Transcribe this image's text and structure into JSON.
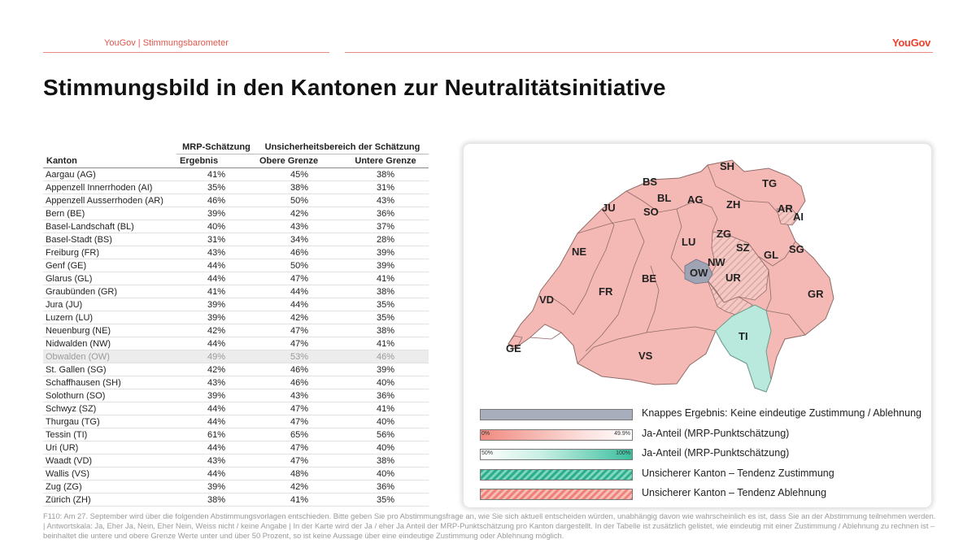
{
  "header": {
    "breadcrumb": "YouGov | Stimmungsbarometer",
    "brand": "YouGov"
  },
  "title": "Stimmungsbild in den Kantonen zur Neutralitätsinitiative",
  "table": {
    "group_headers": [
      "MRP-Schätzung",
      "Unsicherheitsbereich der Schätzung"
    ],
    "columns": [
      "Kanton",
      "Ergebnis",
      "Obere Grenze",
      "Untere Grenze"
    ],
    "rows": [
      [
        "Aargau (AG)",
        "41%",
        "45%",
        "38%"
      ],
      [
        "Appenzell Innerrhoden (AI)",
        "35%",
        "38%",
        "31%"
      ],
      [
        "Appenzell Ausserrhoden (AR)",
        "46%",
        "50%",
        "43%"
      ],
      [
        "Bern (BE)",
        "39%",
        "42%",
        "36%"
      ],
      [
        "Basel-Landschaft (BL)",
        "40%",
        "43%",
        "37%"
      ],
      [
        "Basel-Stadt (BS)",
        "31%",
        "34%",
        "28%"
      ],
      [
        "Freiburg (FR)",
        "43%",
        "46%",
        "39%"
      ],
      [
        "Genf (GE)",
        "44%",
        "50%",
        "39%"
      ],
      [
        "Glarus (GL)",
        "44%",
        "47%",
        "41%"
      ],
      [
        "Graubünden (GR)",
        "41%",
        "44%",
        "38%"
      ],
      [
        "Jura (JU)",
        "39%",
        "44%",
        "35%"
      ],
      [
        "Luzern (LU)",
        "39%",
        "42%",
        "35%"
      ],
      [
        "Neuenburg (NE)",
        "42%",
        "47%",
        "38%"
      ],
      [
        "Nidwalden (NW)",
        "44%",
        "47%",
        "41%"
      ],
      [
        "Obwalden (OW)",
        "49%",
        "53%",
        "46%"
      ],
      [
        "St. Gallen (SG)",
        "42%",
        "46%",
        "39%"
      ],
      [
        "Schaffhausen (SH)",
        "43%",
        "46%",
        "40%"
      ],
      [
        "Solothurn (SO)",
        "39%",
        "43%",
        "36%"
      ],
      [
        "Schwyz (SZ)",
        "44%",
        "47%",
        "41%"
      ],
      [
        "Thurgau (TG)",
        "44%",
        "47%",
        "40%"
      ],
      [
        "Tessin (TI)",
        "61%",
        "65%",
        "56%"
      ],
      [
        "Uri (UR)",
        "44%",
        "47%",
        "40%"
      ],
      [
        "Waadt (VD)",
        "43%",
        "47%",
        "38%"
      ],
      [
        "Wallis (VS)",
        "44%",
        "48%",
        "40%"
      ],
      [
        "Zug (ZG)",
        "39%",
        "42%",
        "36%"
      ],
      [
        "Zürich (ZH)",
        "38%",
        "41%",
        "35%"
      ]
    ]
  },
  "map": {
    "labels": [
      "SH",
      "TG",
      "BS",
      "BL",
      "AG",
      "ZH",
      "JU",
      "SO",
      "AR",
      "AI",
      "LU",
      "ZG",
      "NE",
      "SZ",
      "GL",
      "SG",
      "NW",
      "OW",
      "UR",
      "BE",
      "FR",
      "GR",
      "VD",
      "TI",
      "GE",
      "VS"
    ]
  },
  "legend": {
    "items": [
      "Knappes Ergebnis: Keine eindeutige Zustimmung / Ablehnung",
      "Ja-Anteil (MRP-Punktschätzung)",
      "Ja-Anteil (MRP-Punktschätzung)",
      "Unsicherer Kanton – Tendenz Zustimmung",
      "Unsicherer Kanton – Tendenz Ablehnung"
    ],
    "red_scale": [
      "0%",
      "49.9%"
    ],
    "green_scale": [
      "50%",
      "100%"
    ],
    "colors": {
      "red": "#f4a9a4",
      "green": "#3bbf9f",
      "grey": "#a9aebd",
      "ti": "#b9e9dc"
    }
  },
  "footer": "F110: Am 27. September wird über die folgenden Abstimmungsvorlagen entschieden. Bitte geben Sie pro Abstimmungsfrage an, wie Sie sich aktuell entscheiden würden, unabhängig davon wie wahrscheinlich es ist, dass Sie an der Abstimmung teilnehmen werden. | Antwortskala: Ja, Eher Ja, Nein, Eher Nein, Weiss nicht / keine Angabe | In der Karte wird der Ja / eher Ja Anteil der MRP-Punktschätzung pro Kanton dargestellt. In der Tabelle ist zusätzlich gelistet, wie eindeutig mit einer Zustimmung / Ablehnung zu rechnen ist – beinhaltet die untere und obere Grenze Werte unter und über 50 Prozent, so ist keine Aussage über eine eindeutige Zustimmung oder Ablehnung möglich."
}
